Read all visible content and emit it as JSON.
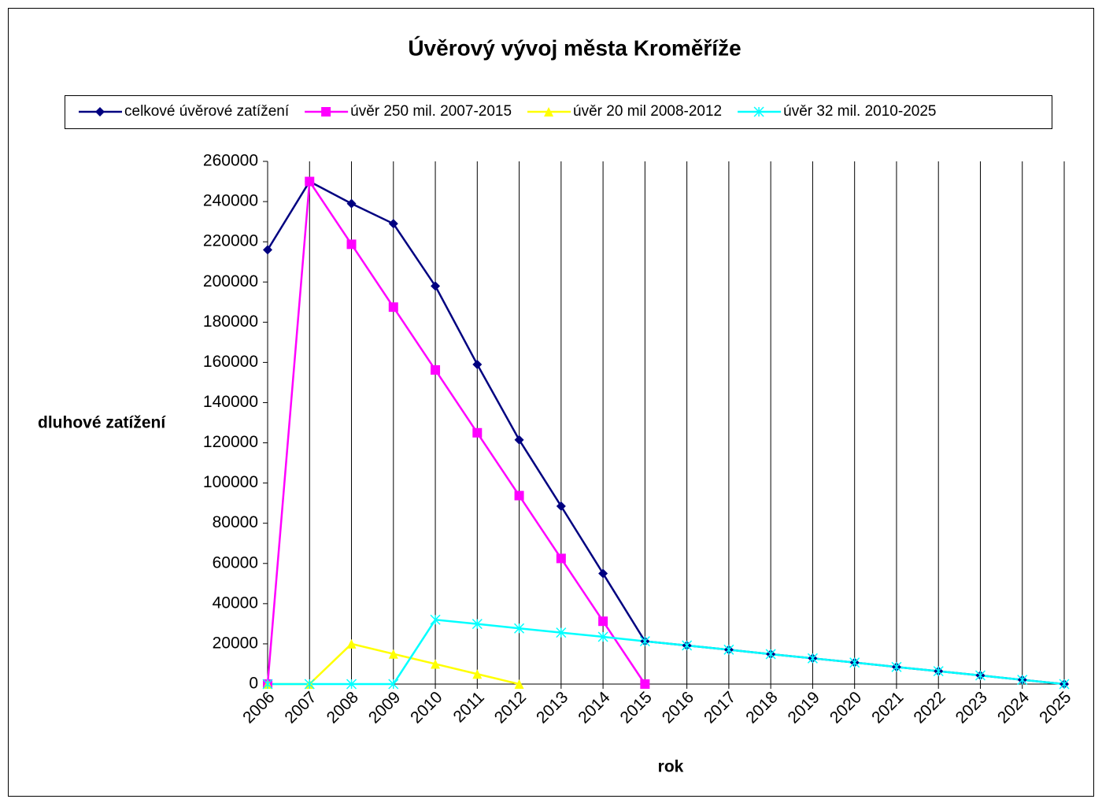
{
  "chart_data": {
    "type": "line",
    "title": "Úvěrový vývoj města Kroměříže",
    "x_label": "rok",
    "y_label": "dluhové zatížení",
    "categories": [
      "2006",
      "2007",
      "2008",
      "2009",
      "2010",
      "2011",
      "2012",
      "2013",
      "2014",
      "2015",
      "2016",
      "2017",
      "2018",
      "2019",
      "2020",
      "2021",
      "2022",
      "2023",
      "2024",
      "2025"
    ],
    "series": [
      {
        "name": "celkové úvěrové zatížení",
        "color": "#000080",
        "marker": "diamond",
        "values": [
          216000,
          250000,
          239000,
          229000,
          198000,
          159000,
          121500,
          88500,
          55000,
          21300,
          19200,
          17100,
          14900,
          12800,
          10700,
          8500,
          6400,
          4300,
          2100,
          0
        ]
      },
      {
        "name": "úvěr 250 mil. 2007-2015",
        "color": "#ff00ff",
        "marker": "square",
        "values": [
          0,
          250000,
          218750,
          187500,
          156250,
          125000,
          93750,
          62500,
          31250,
          0,
          null,
          null,
          null,
          null,
          null,
          null,
          null,
          null,
          null,
          null
        ]
      },
      {
        "name": "úvěr 20 mil 2008-2012",
        "color": "#ffff00",
        "marker": "triangle",
        "values": [
          0,
          0,
          20000,
          15000,
          10000,
          5000,
          0,
          null,
          null,
          null,
          null,
          null,
          null,
          null,
          null,
          null,
          null,
          null,
          null,
          null
        ]
      },
      {
        "name": "úvěr 32 mil. 2010-2025",
        "color": "#00ffff",
        "marker": "x",
        "values": [
          0,
          0,
          0,
          0,
          32000,
          29900,
          27700,
          25600,
          23500,
          21300,
          19200,
          17100,
          14900,
          12800,
          10700,
          8500,
          6400,
          4300,
          2100,
          0
        ]
      }
    ],
    "ylim": [
      0,
      260000
    ],
    "yticks": [
      0,
      20000,
      40000,
      60000,
      80000,
      100000,
      120000,
      140000,
      160000,
      180000,
      200000,
      220000,
      240000,
      260000
    ],
    "grid": "x",
    "legend": "top"
  }
}
